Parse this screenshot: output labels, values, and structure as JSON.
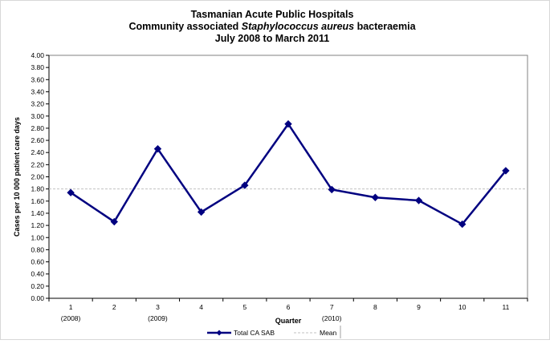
{
  "chart_data": {
    "type": "line",
    "title_lines": [
      {
        "parts": [
          {
            "text": "Tasmanian Acute Public Hospitals",
            "italic": false
          }
        ]
      },
      {
        "parts": [
          {
            "text": "Community associated ",
            "italic": false
          },
          {
            "text": "Staphylococcus aureus",
            "italic": true
          },
          {
            "text": " bacteraemia",
            "italic": false
          }
        ]
      },
      {
        "parts": [
          {
            "text": "July 2008 to March 2011",
            "italic": false
          }
        ]
      }
    ],
    "xlabel": "Quarter",
    "ylabel": "Cases per 10 000 patient care days",
    "categories": [
      "1",
      "2",
      "3",
      "4",
      "5",
      "6",
      "7",
      "8",
      "9",
      "10",
      "11"
    ],
    "year_labels": [
      {
        "category": "1",
        "text": "(2008)"
      },
      {
        "category": "3",
        "text": "(2009)"
      },
      {
        "category": "7",
        "text": "(2010)"
      }
    ],
    "ylim": [
      0,
      4.0
    ],
    "y_ticks": [
      "0.00",
      "0.20",
      "0.40",
      "0.60",
      "0.80",
      "1.00",
      "1.20",
      "1.40",
      "1.60",
      "1.80",
      "2.00",
      "2.20",
      "2.40",
      "2.60",
      "2.80",
      "3.00",
      "3.20",
      "3.40",
      "3.60",
      "3.80",
      "4.00"
    ],
    "series": [
      {
        "name": "Total CA SAB",
        "color": "#000080",
        "marker": "diamond",
        "values": [
          1.74,
          1.26,
          2.46,
          1.42,
          1.86,
          2.87,
          1.79,
          1.66,
          1.61,
          1.22,
          2.1
        ]
      },
      {
        "name": "Mean",
        "color": "#c0c0c0",
        "style": "dashed",
        "values": [
          1.8,
          1.8,
          1.8,
          1.8,
          1.8,
          1.8,
          1.8,
          1.8,
          1.8,
          1.8,
          1.8
        ]
      }
    ],
    "grid": false,
    "legend_placement": "bottom-center"
  }
}
